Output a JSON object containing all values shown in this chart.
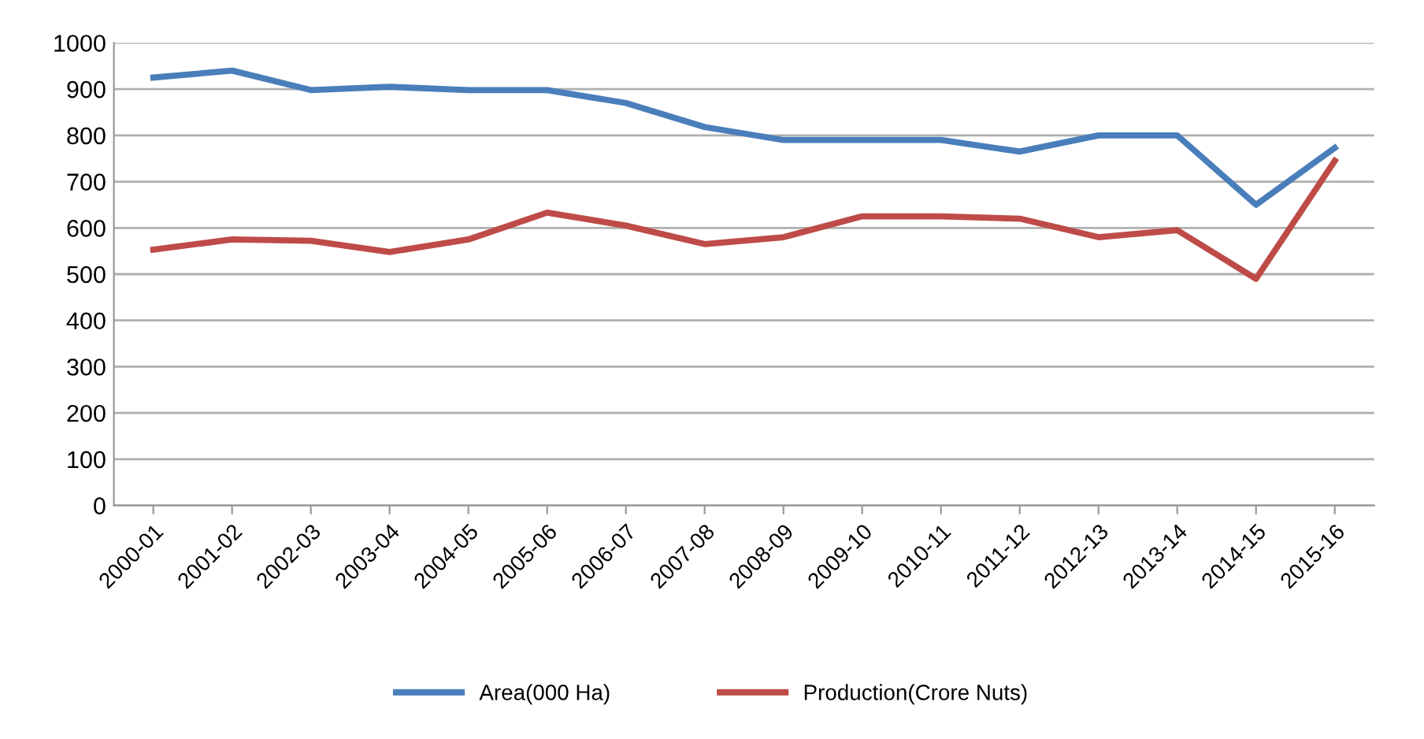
{
  "chart_data": {
    "type": "line",
    "categories": [
      "2000-01",
      "2001-02",
      "2002-03",
      "2003-04",
      "2004-05",
      "2005-06",
      "2006-07",
      "2007-08",
      "2008-09",
      "2009-10",
      "2010-11",
      "2011-12",
      "2012-13",
      "2013-14",
      "2014-15",
      "2015-16"
    ],
    "series": [
      {
        "name": "Area(000 Ha)",
        "color": "#4a7ebb",
        "values": [
          925,
          940,
          898,
          905,
          898,
          898,
          870,
          818,
          790,
          790,
          790,
          765,
          800,
          800,
          650,
          773
        ]
      },
      {
        "name": "Production(Crore Nuts)",
        "color": "#be4b48",
        "values": [
          553,
          575,
          572,
          548,
          575,
          633,
          605,
          565,
          580,
          625,
          625,
          620,
          580,
          595,
          490,
          745
        ]
      }
    ],
    "ylim": [
      0,
      1000
    ],
    "yticks": [
      0,
      100,
      200,
      300,
      400,
      500,
      600,
      700,
      800,
      900,
      1000
    ],
    "grid": "y",
    "legend": "bottom",
    "marker": "none",
    "line_style": "solid"
  }
}
